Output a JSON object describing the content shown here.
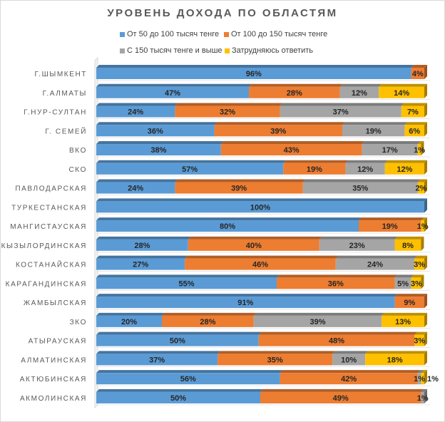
{
  "chart_data": {
    "type": "bar",
    "orientation": "horizontal",
    "stacked": "percent",
    "title": "УРОВЕНЬ ДОХОДА ПО ОБЛАСТЯМ",
    "legend_position": "top",
    "grid": false,
    "xlim": [
      0,
      100
    ],
    "categories": [
      "Г.ШЫМКЕНТ",
      "Г.АЛМАТЫ",
      "Г.НУР-СУЛТАН",
      "Г. СЕМЕЙ",
      "ВКО",
      "СКО",
      "ПАВЛОДАРСКАЯ",
      "ТУРКЕСТАНСКАЯ",
      "МАНГИСТАУСКАЯ",
      "КЫЗЫЛОРДИНСКАЯ",
      "КОСТАНАЙСКАЯ",
      "КАРАГАНДИНСКАЯ",
      "ЖАМБЫЛСКАЯ",
      "ЗКО",
      "АТЫРАУСКАЯ",
      "АЛМАТИНСКАЯ",
      "АКТЮБИНСКАЯ",
      "АКМОЛИНСКАЯ"
    ],
    "series": [
      {
        "name": "От 50 до  100 тысяч тенге",
        "color": "#5b9bd5",
        "values": [
          96,
          47,
          24,
          36,
          38,
          57,
          24,
          100,
          80,
          28,
          27,
          55,
          91,
          20,
          50,
          37,
          56,
          50
        ]
      },
      {
        "name": "От 100 до  150 тысяч тенге",
        "color": "#ed7d31",
        "values": [
          4,
          28,
          32,
          39,
          43,
          19,
          39,
          0,
          19,
          40,
          46,
          36,
          9,
          28,
          48,
          35,
          42,
          49
        ]
      },
      {
        "name": "С 150 тысяч тенге и выше",
        "color": "#a5a5a5",
        "values": [
          0,
          12,
          37,
          19,
          17,
          12,
          35,
          0,
          0,
          23,
          24,
          5,
          0,
          39,
          0,
          10,
          1,
          1
        ]
      },
      {
        "name": "Затрудняюсь ответить",
        "color": "#ffc000",
        "values": [
          0,
          14,
          7,
          6,
          1,
          12,
          2,
          0,
          1,
          8,
          3,
          3,
          0,
          13,
          3,
          18,
          1,
          0
        ]
      }
    ]
  }
}
